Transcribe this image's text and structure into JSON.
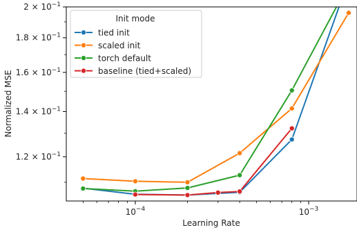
{
  "chart_data": {
    "type": "line",
    "xlabel": "Learning Rate",
    "ylabel": "Normalized MSE",
    "xscale": "log",
    "yscale": "log",
    "xlim": [
      4e-05,
      0.0019
    ],
    "ylim": [
      0.1032,
      0.2
    ],
    "x_ticks": [
      {
        "value": 0.0001,
        "base": "10",
        "exp": "−4"
      },
      {
        "value": 0.001,
        "base": "10",
        "exp": "−3"
      }
    ],
    "y_ticks": [
      {
        "value": 0.12,
        "mant": "1.2",
        "exp": "−1"
      },
      {
        "value": 0.14,
        "mant": "1.4",
        "exp": "−1"
      },
      {
        "value": 0.16,
        "mant": "1.6",
        "exp": "−1"
      },
      {
        "value": 0.18,
        "mant": "1.8",
        "exp": "−1"
      },
      {
        "value": 0.2,
        "mant": "2",
        "exp": "−1"
      }
    ],
    "legend": {
      "title": "Init mode",
      "position": "upper left"
    },
    "grid": false,
    "series": [
      {
        "name": "tied init",
        "color": "#1f77b4",
        "x": [
          5e-05,
          0.0001,
          0.0002,
          0.0004,
          0.0008,
          0.0016
        ],
        "y": [
          0.1078,
          0.1056,
          0.1053,
          0.1063,
          0.1273,
          0.21
        ]
      },
      {
        "name": "scaled init",
        "color": "#ff7f0e",
        "x": [
          5e-05,
          0.0001,
          0.0002,
          0.0004,
          0.0008,
          0.0017
        ],
        "y": [
          0.1114,
          0.1104,
          0.11,
          0.1215,
          0.1415,
          0.196
        ]
      },
      {
        "name": "torch default",
        "color": "#2ca02c",
        "x": [
          5e-05,
          0.0001,
          0.0002,
          0.0004,
          0.0008,
          0.0016
        ],
        "y": [
          0.1077,
          0.1067,
          0.1079,
          0.1127,
          0.1505,
          0.21
        ]
      },
      {
        "name": "baseline (tied+scaled)",
        "color": "#d62728",
        "x": [
          0.0001,
          0.0002,
          0.0003,
          0.0004,
          0.0008
        ],
        "y": [
          0.1055,
          0.1053,
          0.1062,
          0.1066,
          0.1322
        ]
      }
    ]
  }
}
